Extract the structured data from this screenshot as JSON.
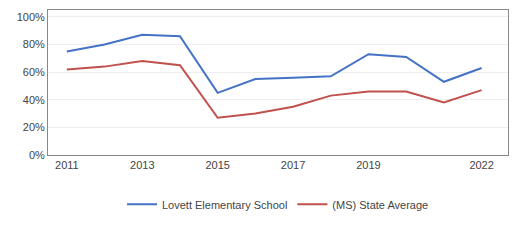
{
  "chart_data": {
    "type": "line",
    "x": [
      2011,
      2012,
      2013,
      2014,
      2015,
      2016,
      2017,
      2018,
      2019,
      2020,
      2021,
      2022
    ],
    "series": [
      {
        "name": "Lovett Elementary School",
        "color": "#4472c4",
        "values": [
          0.75,
          0.8,
          0.87,
          0.86,
          0.45,
          0.55,
          0.56,
          0.57,
          0.73,
          0.71,
          0.53,
          0.63
        ]
      },
      {
        "name": "(MS) State Average",
        "color": "#c0504d",
        "values": [
          0.62,
          0.64,
          0.68,
          0.65,
          0.27,
          0.3,
          0.35,
          0.43,
          0.46,
          0.46,
          0.38,
          0.47
        ]
      }
    ],
    "xlim": [
      2010.5,
      2022.7
    ],
    "xticks": [
      2011,
      2013,
      2015,
      2017,
      2019,
      2022
    ],
    "ylim": [
      0.0,
      1.05
    ],
    "yticks": [
      {
        "value": 0.0,
        "label": "0%"
      },
      {
        "value": 0.2,
        "label": "20%"
      },
      {
        "value": 0.4,
        "label": "40%"
      },
      {
        "value": 0.6,
        "label": "60%"
      },
      {
        "value": 0.8,
        "label": "80%"
      },
      {
        "value": 1.0,
        "label": "100%"
      }
    ],
    "grid": "y",
    "legend": "bottom"
  }
}
